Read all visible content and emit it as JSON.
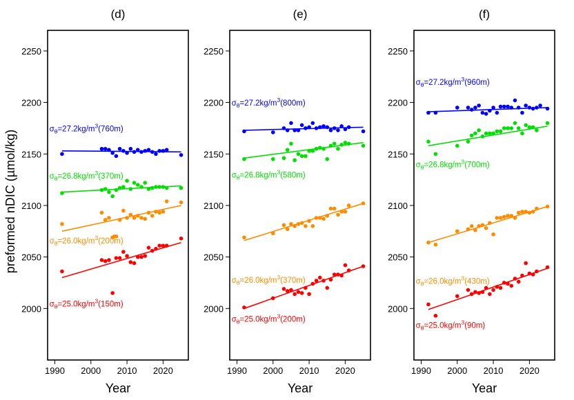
{
  "figure": {
    "ylabel": "preformed nDIC (µmol/kg)",
    "xlabel": "Year"
  },
  "chart_data": [
    {
      "type": "scatter",
      "title": "(d)",
      "xlabel": "Year",
      "ylabel": "preformed nDIC (µmol/kg)",
      "xlim": [
        1988,
        2027
      ],
      "ylim": [
        1950,
        2270
      ],
      "xticks": [
        "1990",
        "2000",
        "2010",
        "2020"
      ],
      "yticks": [
        "2000",
        "2050",
        "2100",
        "2150",
        "2200",
        "2250"
      ],
      "series": [
        {
          "name": "σθ=27.2kg/m³(760m)",
          "prefix": "σ",
          "sub": "θ",
          "mid": "=27.2kg/m",
          "sup": "3",
          "suffix": "(760m)",
          "color": "#0000ff",
          "label_anchor": [
            1988.5,
            2172
          ],
          "x": [
            1992,
            2003,
            2004,
            2005,
            2006,
            2007,
            2008,
            2009,
            2010,
            2011,
            2012,
            2013,
            2014,
            2015,
            2016,
            2017,
            2018,
            2019,
            2020,
            2021,
            2025
          ],
          "y": [
            2150,
            2155,
            2155,
            2154,
            2151,
            2148,
            2155,
            2153,
            2151,
            2155,
            2152,
            2154,
            2152,
            2153,
            2154,
            2152,
            2150,
            2153,
            2153,
            2154,
            2149
          ],
          "fit": [
            [
              1992,
              2153
            ],
            [
              2025,
              2152
            ]
          ]
        },
        {
          "name": "σθ=26.8kg/m³(370m)",
          "prefix": "σ",
          "sub": "θ",
          "mid": "=26.8kg/m",
          "sup": "3",
          "suffix": "(370m)",
          "color": "#00e000",
          "label_anchor": [
            1988.5,
            2126
          ],
          "x": [
            1992,
            2003,
            2004,
            2005,
            2006,
            2007,
            2008,
            2009,
            2010,
            2011,
            2012,
            2013,
            2014,
            2015,
            2016,
            2017,
            2018,
            2019,
            2020,
            2021,
            2025
          ],
          "y": [
            2112,
            2115,
            2116,
            2113,
            2109,
            2115,
            2117,
            2118,
            2124,
            2116,
            2122,
            2120,
            2118,
            2122,
            2116,
            2117,
            2118,
            2118,
            2118,
            2117,
            2117
          ],
          "fit": [
            [
              1992,
              2113
            ],
            [
              2025,
              2119
            ]
          ]
        },
        {
          "name": "σθ=26.0kg/m³(200m)",
          "prefix": "σ",
          "sub": "θ",
          "mid": "=26.0kg/m",
          "sup": "3",
          "suffix": "(200m)",
          "color": "#ff8c00",
          "label_anchor": [
            1988.5,
            2063
          ],
          "x": [
            1992,
            2003,
            2004,
            2005,
            2006,
            2006.5,
            2007,
            2008,
            2009,
            2010,
            2011,
            2012,
            2013,
            2014,
            2015,
            2016,
            2017,
            2018,
            2019,
            2020,
            2021,
            2025
          ],
          "y": [
            2082,
            2093,
            2086,
            2088,
            2069,
            2070,
            2070,
            2086,
            2095,
            2088,
            2091,
            2088,
            2090,
            2088,
            2087,
            2093,
            2090,
            2094,
            2093,
            2094,
            2104,
            2103
          ],
          "fit": [
            [
              1992,
              2075
            ],
            [
              2025,
              2100
            ]
          ]
        },
        {
          "name": "σθ=25.0kg/m³(150m)",
          "prefix": "σ",
          "sub": "θ",
          "mid": "=25.0kg/m",
          "sup": "3",
          "suffix": "(150m)",
          "color": "#ff0000",
          "label_anchor": [
            1988.5,
            2002
          ],
          "x": [
            1992,
            2003,
            2004,
            2005,
            2006,
            2007,
            2008,
            2009,
            2010,
            2011,
            2012,
            2013,
            2014,
            2015,
            2016,
            2017,
            2018,
            2019,
            2020,
            2021,
            2025
          ],
          "y": [
            2036,
            2047,
            2046,
            2047,
            2015,
            2049,
            2049,
            2055,
            2051,
            2045,
            2044,
            2050,
            2050,
            2051,
            2059,
            2056,
            2058,
            2061,
            2061,
            2061,
            2068
          ],
          "fit": [
            [
              1992,
              2030
            ],
            [
              2025,
              2064
            ]
          ]
        }
      ]
    },
    {
      "type": "scatter",
      "title": "(e)",
      "xlabel": "Year",
      "xlim": [
        1988,
        2027
      ],
      "ylim": [
        1950,
        2270
      ],
      "xticks": [
        "1990",
        "2000",
        "2010",
        "2020"
      ],
      "yticks": [
        "2000",
        "2050",
        "2100",
        "2150",
        "2200",
        "2250"
      ],
      "series": [
        {
          "name": "σθ=27.2kg/m³(800m)",
          "prefix": "σ",
          "sub": "θ",
          "mid": "=27.2kg/m",
          "sup": "3",
          "suffix": "(800m)",
          "color": "#0000ff",
          "label_anchor": [
            1988.5,
            2197
          ],
          "x": [
            1992,
            2000,
            2003,
            2004,
            2005,
            2006,
            2007,
            2008,
            2009,
            2010,
            2011,
            2012,
            2013,
            2014,
            2015,
            2016,
            2017,
            2018,
            2019,
            2020,
            2021,
            2025
          ],
          "y": [
            2172,
            2171,
            2175,
            2173,
            2180,
            2173,
            2173,
            2178,
            2175,
            2176,
            2180,
            2175,
            2176,
            2177,
            2176,
            2173,
            2175,
            2173,
            2177,
            2174,
            2176,
            2172
          ],
          "fit": [
            [
              1992,
              2173
            ],
            [
              2025,
              2176
            ]
          ]
        },
        {
          "name": "σθ=26.8kg/m³(580m)",
          "prefix": "σ",
          "sub": "θ",
          "mid": "=26.8kg/m",
          "sup": "3",
          "suffix": "(580m)",
          "color": "#00e000",
          "label_anchor": [
            1988.5,
            2127
          ],
          "x": [
            1992,
            2000,
            2003,
            2004,
            2005,
            2006,
            2007,
            2008,
            2009,
            2010,
            2011,
            2012,
            2013,
            2014,
            2015,
            2016,
            2017,
            2018,
            2019,
            2020,
            2021,
            2025
          ],
          "y": [
            2145,
            2145,
            2146,
            2154,
            2160,
            2144,
            2150,
            2148,
            2148,
            2153,
            2153,
            2155,
            2156,
            2155,
            2145,
            2158,
            2160,
            2155,
            2159,
            2161,
            2160,
            2158
          ],
          "fit": [
            [
              1992,
              2146
            ],
            [
              2025,
              2161
            ]
          ]
        },
        {
          "name": "σθ=26.0kg/m³(370m)",
          "prefix": "σ",
          "sub": "θ",
          "mid": "=26.0kg/m",
          "sup": "3",
          "suffix": "(370m)",
          "color": "#ff8c00",
          "label_anchor": [
            1988.5,
            2025
          ],
          "x": [
            1992,
            2000,
            2003,
            2004,
            2005,
            2006,
            2007,
            2008,
            2009,
            2010,
            2011,
            2012,
            2013,
            2014,
            2015,
            2016,
            2017,
            2018,
            2019,
            2020,
            2021,
            2025
          ],
          "y": [
            2069,
            2073,
            2081,
            2077,
            2082,
            2080,
            2082,
            2083,
            2080,
            2085,
            2080,
            2088,
            2088,
            2087,
            2090,
            2097,
            2097,
            2091,
            2094,
            2094,
            2100,
            2102
          ],
          "fit": [
            [
              1992,
              2066
            ],
            [
              2025,
              2102
            ]
          ]
        },
        {
          "name": "σθ=25.0kg/m³(200m)",
          "prefix": "σ",
          "sub": "θ",
          "mid": "=25.0kg/m",
          "sup": "3",
          "suffix": "(200m)",
          "color": "#ff0000",
          "label_anchor": [
            1988.5,
            1987
          ],
          "x": [
            1992,
            2000,
            2003,
            2004,
            2005,
            2006,
            2007,
            2008,
            2009,
            2010,
            2011,
            2012,
            2013,
            2014,
            2015,
            2016,
            2017,
            2018,
            2019,
            2020,
            2021,
            2025
          ],
          "y": [
            2001,
            2010,
            2019,
            2017,
            2018,
            2014,
            2016,
            2015,
            2020,
            2014,
            2024,
            2027,
            2030,
            2027,
            2020,
            2028,
            2033,
            2033,
            2032,
            2042,
            2037,
            2041
          ],
          "fit": [
            [
              1992,
              2000
            ],
            [
              2025,
              2041
            ]
          ]
        }
      ]
    },
    {
      "type": "scatter",
      "title": "(f)",
      "xlabel": "Year",
      "xlim": [
        1988,
        2027
      ],
      "ylim": [
        1950,
        2270
      ],
      "xticks": [
        "1990",
        "2000",
        "2010",
        "2020"
      ],
      "yticks": [
        "2000",
        "2050",
        "2100",
        "2150",
        "2200",
        "2250"
      ],
      "series": [
        {
          "name": "σθ=27.2kg/m³(960m)",
          "prefix": "σ",
          "sub": "θ",
          "mid": "=27.2kg/m",
          "sup": "3",
          "suffix": "(960m)",
          "color": "#0000ff",
          "label_anchor": [
            1988.5,
            2217
          ],
          "x": [
            1992,
            1994,
            2000,
            2003,
            2004,
            2005,
            2006,
            2007,
            2008,
            2009,
            2010,
            2011,
            2012,
            2013,
            2014,
            2015,
            2016,
            2017,
            2018,
            2019,
            2020,
            2021,
            2022,
            2023,
            2025
          ],
          "y": [
            2190,
            2190,
            2195,
            2195,
            2193,
            2195,
            2197,
            2190,
            2189,
            2192,
            2195,
            2190,
            2196,
            2196,
            2196,
            2195,
            2202,
            2195,
            2190,
            2197,
            2195,
            2194,
            2195,
            2197,
            2194
          ],
          "fit": [
            [
              1992,
              2191
            ],
            [
              2025,
              2195
            ]
          ]
        },
        {
          "name": "σθ=26.8kg/m³(700m)",
          "prefix": "σ",
          "sub": "θ",
          "mid": "=26.8kg/m",
          "sup": "3",
          "suffix": "(700m)",
          "color": "#00e000",
          "label_anchor": [
            1988.5,
            2137
          ],
          "x": [
            1992,
            1994,
            2000,
            2003,
            2004,
            2005,
            2006,
            2007,
            2008,
            2009,
            2010,
            2011,
            2012,
            2013,
            2014,
            2015,
            2016,
            2017,
            2018,
            2019,
            2020,
            2021,
            2022,
            2025
          ],
          "y": [
            2162,
            2150,
            2158,
            2162,
            2168,
            2170,
            2173,
            2167,
            2170,
            2170,
            2170,
            2172,
            2172,
            2175,
            2175,
            2175,
            2180,
            2175,
            2170,
            2178,
            2176,
            2176,
            2173,
            2180
          ],
          "fit": [
            [
              1992,
              2158
            ],
            [
              2025,
              2177
            ]
          ]
        },
        {
          "name": "σθ=26.0kg/m³(430m)",
          "prefix": "σ",
          "sub": "θ",
          "mid": "=26.0kg/m",
          "sup": "3",
          "suffix": "(430m)",
          "color": "#ff8c00",
          "label_anchor": [
            1988.5,
            2024
          ],
          "x": [
            1992,
            1994,
            2000,
            2003,
            2004,
            2005,
            2006,
            2007,
            2008,
            2009,
            2010,
            2011,
            2012,
            2013,
            2014,
            2015,
            2016,
            2017,
            2018,
            2019,
            2020,
            2021,
            2022,
            2025
          ],
          "y": [
            2064,
            2062,
            2075,
            2077,
            2080,
            2076,
            2080,
            2081,
            2078,
            2083,
            2072,
            2088,
            2088,
            2089,
            2090,
            2090,
            2088,
            2093,
            2094,
            2094,
            2093,
            2094,
            2097,
            2099
          ],
          "fit": [
            [
              1992,
              2064
            ],
            [
              2025,
              2099
            ]
          ]
        },
        {
          "name": "σθ=25.0kg/m³(90m)",
          "prefix": "σ",
          "sub": "θ",
          "mid": "=25.0kg/m",
          "sup": "3",
          "suffix": "(90m)",
          "color": "#ff0000",
          "label_anchor": [
            1988.5,
            1981
          ],
          "x": [
            1992,
            1994,
            2000,
            2003,
            2004,
            2005,
            2006,
            2007,
            2008,
            2009,
            2010,
            2011,
            2012,
            2013,
            2014,
            2015,
            2016,
            2017,
            2018,
            2019,
            2020,
            2021,
            2022,
            2025
          ],
          "y": [
            2004,
            1993,
            2012,
            2018,
            2014,
            2016,
            2015,
            2016,
            2020,
            2014,
            2018,
            2021,
            2020,
            2025,
            2024,
            2022,
            2029,
            2026,
            2032,
            2044,
            2034,
            2033,
            2036,
            2040
          ],
          "fit": [
            [
              1992,
              1999
            ],
            [
              2025,
              2039
            ]
          ]
        }
      ]
    }
  ]
}
